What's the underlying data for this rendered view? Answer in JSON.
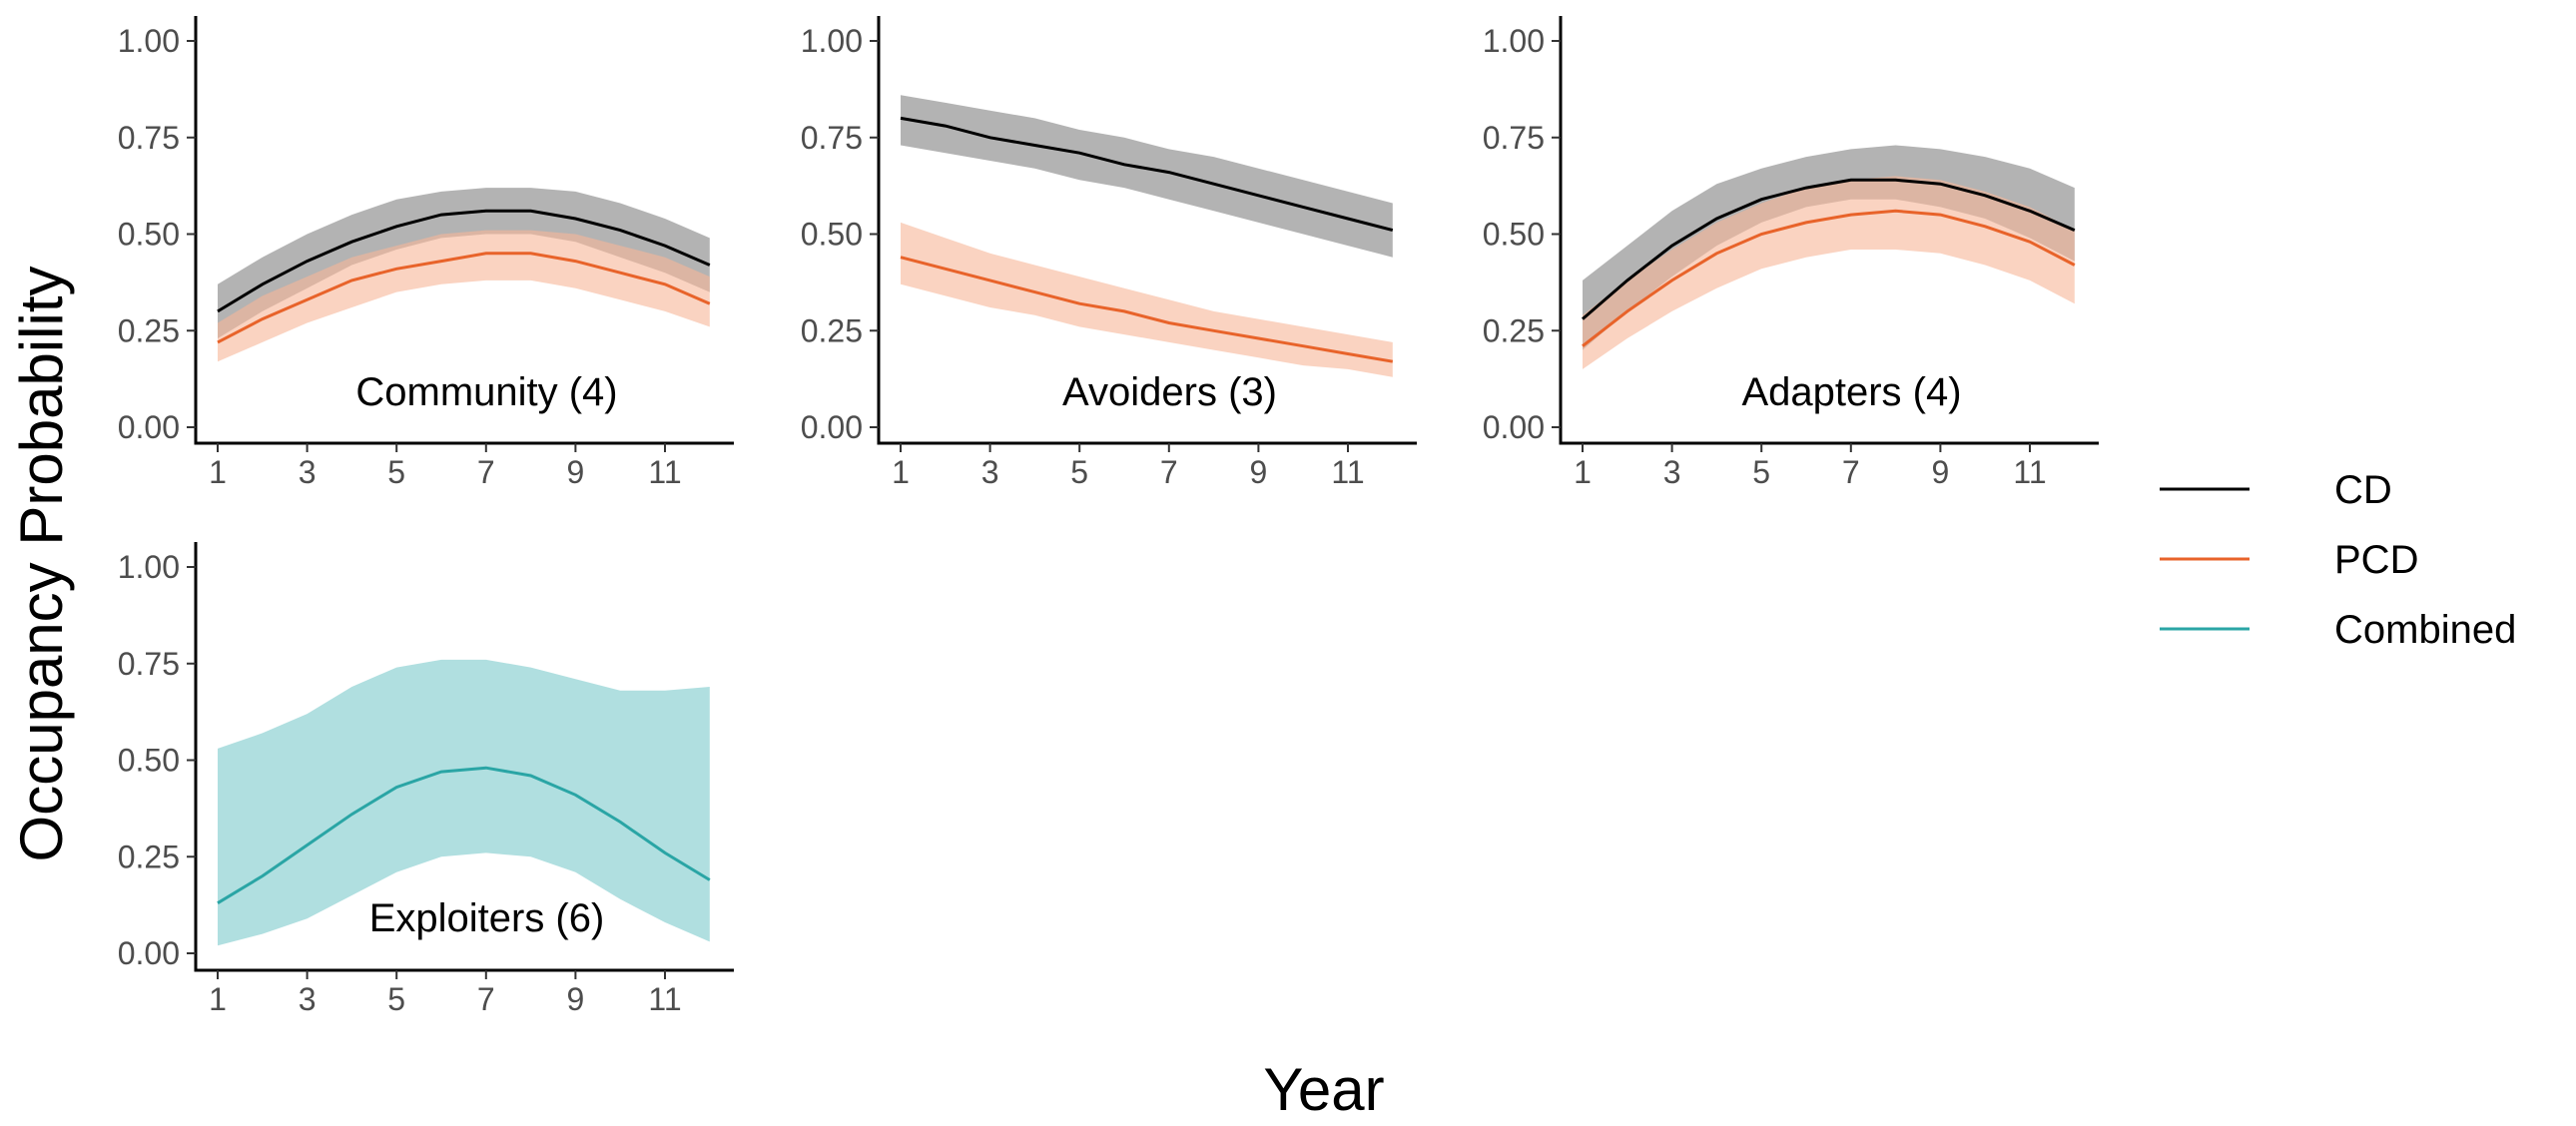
{
  "figure": {
    "xlabel": "Year",
    "ylabel": "Occupancy Probability"
  },
  "colors": {
    "CD": "#000000",
    "PCD": "#e8632a",
    "Combined": "#2aa5a5",
    "CD_band": "#a6a6a6",
    "PCD_band": "#f7b597",
    "Combined_band": "#b0dfe0"
  },
  "legend": {
    "position": "right",
    "entries": [
      {
        "label": "CD",
        "color": "#000000"
      },
      {
        "label": "PCD",
        "color": "#e8632a"
      },
      {
        "label": "Combined",
        "color": "#2aa5a5"
      }
    ]
  },
  "chart_data": [
    {
      "type": "line",
      "label": "Community (4)",
      "x": [
        1,
        2,
        3,
        4,
        5,
        6,
        7,
        8,
        9,
        10,
        11,
        12
      ],
      "xticks": [
        "1",
        "3",
        "5",
        "7",
        "9",
        "11"
      ],
      "yticks": [
        "0.00",
        "0.25",
        "0.50",
        "0.75",
        "1.00"
      ],
      "ylim": [
        0,
        1
      ],
      "series": [
        {
          "name": "CD",
          "values": [
            0.3,
            0.37,
            0.43,
            0.48,
            0.52,
            0.55,
            0.56,
            0.56,
            0.54,
            0.51,
            0.47,
            0.42
          ],
          "lower": [
            0.23,
            0.3,
            0.36,
            0.42,
            0.46,
            0.49,
            0.5,
            0.5,
            0.48,
            0.44,
            0.4,
            0.35
          ],
          "upper": [
            0.37,
            0.44,
            0.5,
            0.55,
            0.59,
            0.61,
            0.62,
            0.62,
            0.61,
            0.58,
            0.54,
            0.49
          ]
        },
        {
          "name": "PCD",
          "values": [
            0.22,
            0.28,
            0.33,
            0.38,
            0.41,
            0.43,
            0.45,
            0.45,
            0.43,
            0.4,
            0.37,
            0.32
          ],
          "lower": [
            0.17,
            0.22,
            0.27,
            0.31,
            0.35,
            0.37,
            0.38,
            0.38,
            0.36,
            0.33,
            0.3,
            0.26
          ],
          "upper": [
            0.27,
            0.34,
            0.39,
            0.44,
            0.47,
            0.5,
            0.51,
            0.51,
            0.5,
            0.47,
            0.44,
            0.39
          ]
        }
      ]
    },
    {
      "type": "line",
      "label": "Avoiders (3)",
      "x": [
        1,
        2,
        3,
        4,
        5,
        6,
        7,
        8,
        9,
        10,
        11,
        12
      ],
      "xticks": [
        "1",
        "3",
        "5",
        "7",
        "9",
        "11"
      ],
      "yticks": [
        "0.00",
        "0.25",
        "0.50",
        "0.75",
        "1.00"
      ],
      "ylim": [
        0,
        1
      ],
      "series": [
        {
          "name": "CD",
          "values": [
            0.8,
            0.78,
            0.75,
            0.73,
            0.71,
            0.68,
            0.66,
            0.63,
            0.6,
            0.57,
            0.54,
            0.51
          ],
          "lower": [
            0.73,
            0.71,
            0.69,
            0.67,
            0.64,
            0.62,
            0.59,
            0.56,
            0.53,
            0.5,
            0.47,
            0.44
          ],
          "upper": [
            0.86,
            0.84,
            0.82,
            0.8,
            0.77,
            0.75,
            0.72,
            0.7,
            0.67,
            0.64,
            0.61,
            0.58
          ]
        },
        {
          "name": "PCD",
          "values": [
            0.44,
            0.41,
            0.38,
            0.35,
            0.32,
            0.3,
            0.27,
            0.25,
            0.23,
            0.21,
            0.19,
            0.17
          ],
          "lower": [
            0.37,
            0.34,
            0.31,
            0.29,
            0.26,
            0.24,
            0.22,
            0.2,
            0.18,
            0.16,
            0.15,
            0.13
          ],
          "upper": [
            0.53,
            0.49,
            0.45,
            0.42,
            0.39,
            0.36,
            0.33,
            0.3,
            0.28,
            0.26,
            0.24,
            0.22
          ]
        }
      ]
    },
    {
      "type": "line",
      "label": "Adapters (4)",
      "x": [
        1,
        2,
        3,
        4,
        5,
        6,
        7,
        8,
        9,
        10,
        11,
        12
      ],
      "xticks": [
        "1",
        "3",
        "5",
        "7",
        "9",
        "11"
      ],
      "yticks": [
        "0.00",
        "0.25",
        "0.50",
        "0.75",
        "1.00"
      ],
      "ylim": [
        0,
        1
      ],
      "series": [
        {
          "name": "CD",
          "values": [
            0.28,
            0.38,
            0.47,
            0.54,
            0.59,
            0.62,
            0.64,
            0.64,
            0.63,
            0.6,
            0.56,
            0.51
          ],
          "lower": [
            0.2,
            0.3,
            0.39,
            0.47,
            0.53,
            0.57,
            0.59,
            0.59,
            0.57,
            0.54,
            0.49,
            0.43
          ],
          "upper": [
            0.38,
            0.47,
            0.56,
            0.63,
            0.67,
            0.7,
            0.72,
            0.73,
            0.72,
            0.7,
            0.67,
            0.62
          ]
        },
        {
          "name": "PCD",
          "values": [
            0.21,
            0.3,
            0.38,
            0.45,
            0.5,
            0.53,
            0.55,
            0.56,
            0.55,
            0.52,
            0.48,
            0.42
          ],
          "lower": [
            0.15,
            0.23,
            0.3,
            0.36,
            0.41,
            0.44,
            0.46,
            0.46,
            0.45,
            0.42,
            0.38,
            0.32
          ],
          "upper": [
            0.29,
            0.38,
            0.46,
            0.53,
            0.58,
            0.62,
            0.64,
            0.65,
            0.64,
            0.61,
            0.57,
            0.51
          ]
        }
      ]
    },
    {
      "type": "line",
      "label": "Exploiters (6)",
      "x": [
        1,
        2,
        3,
        4,
        5,
        6,
        7,
        8,
        9,
        10,
        11,
        12
      ],
      "xticks": [
        "1",
        "3",
        "5",
        "7",
        "9",
        "11"
      ],
      "yticks": [
        "0.00",
        "0.25",
        "0.50",
        "0.75",
        "1.00"
      ],
      "ylim": [
        0,
        1
      ],
      "series": [
        {
          "name": "Combined",
          "values": [
            0.13,
            0.2,
            0.28,
            0.36,
            0.43,
            0.47,
            0.48,
            0.46,
            0.41,
            0.34,
            0.26,
            0.19
          ],
          "lower": [
            0.02,
            0.05,
            0.09,
            0.15,
            0.21,
            0.25,
            0.26,
            0.25,
            0.21,
            0.14,
            0.08,
            0.03
          ],
          "upper": [
            0.53,
            0.57,
            0.62,
            0.69,
            0.74,
            0.76,
            0.76,
            0.74,
            0.71,
            0.68,
            0.68,
            0.69
          ]
        }
      ]
    }
  ]
}
